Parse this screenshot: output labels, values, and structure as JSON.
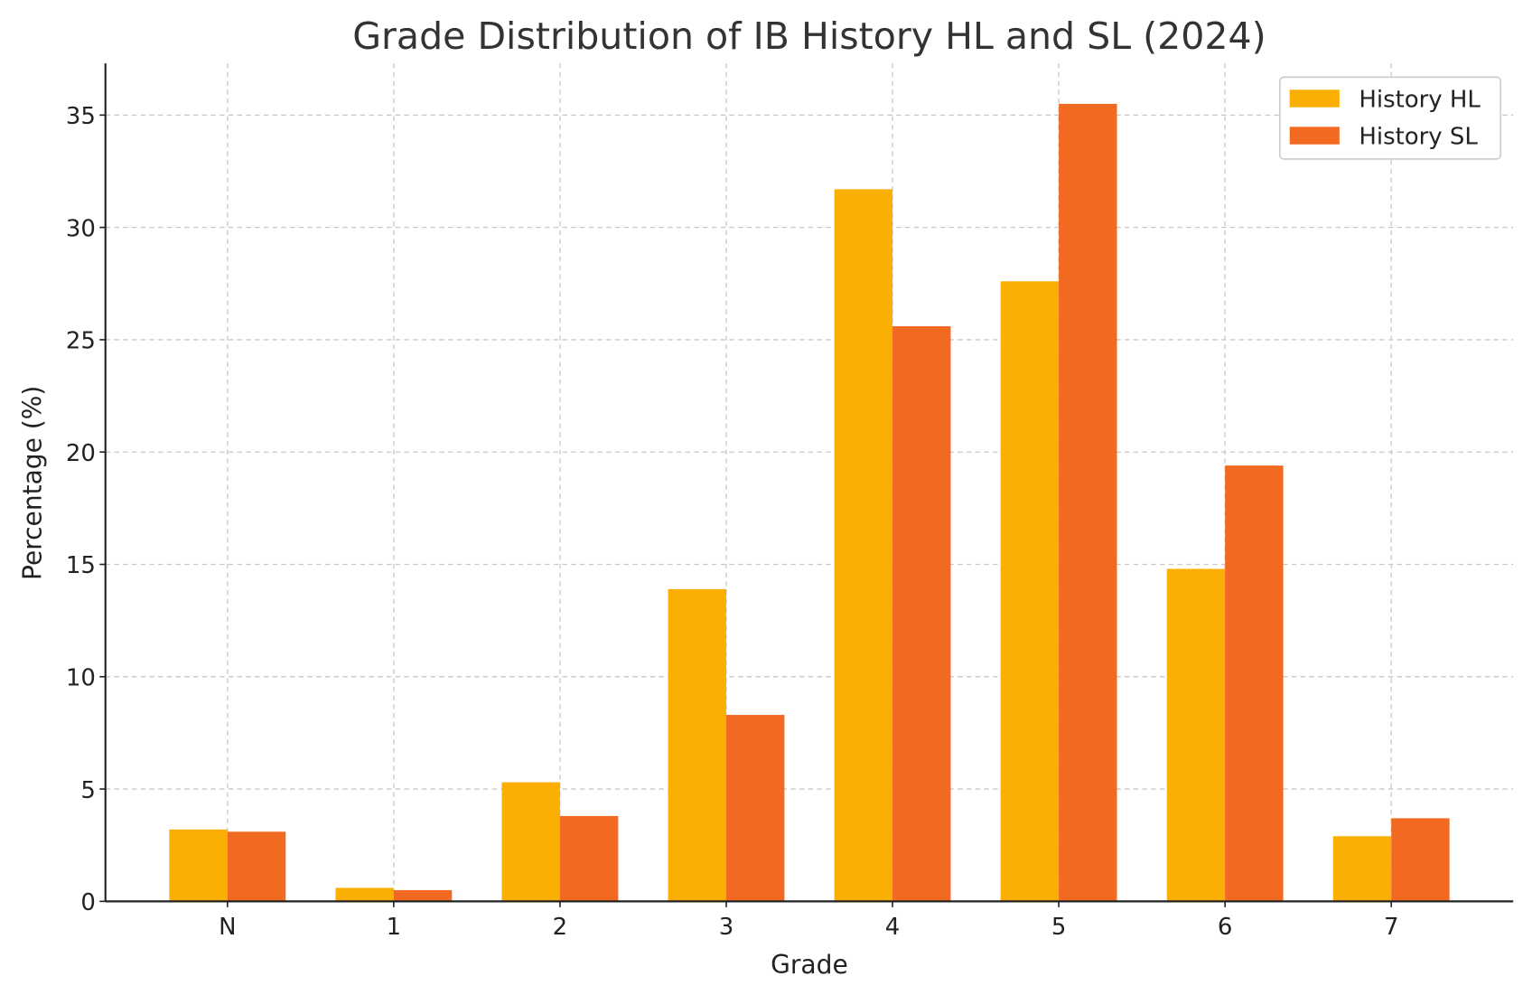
{
  "chart_data": {
    "type": "bar",
    "title": "Grade Distribution of IB History HL and SL (2024)",
    "xlabel": "Grade",
    "ylabel": "Percentage (%)",
    "categories": [
      "N",
      "1",
      "2",
      "3",
      "4",
      "5",
      "6",
      "7"
    ],
    "series": [
      {
        "name": "History HL",
        "color": "#FBAE04",
        "values": [
          3.2,
          0.6,
          5.3,
          13.9,
          31.7,
          27.6,
          14.8,
          2.9
        ]
      },
      {
        "name": "History SL",
        "color": "#F26A22",
        "values": [
          3.1,
          0.5,
          3.8,
          8.3,
          25.6,
          35.5,
          19.4,
          3.7
        ]
      }
    ],
    "yticks": [
      0,
      5,
      10,
      15,
      20,
      25,
      30,
      35
    ],
    "ylim": [
      0,
      37.3
    ],
    "grid": true,
    "legend": "top-right"
  }
}
